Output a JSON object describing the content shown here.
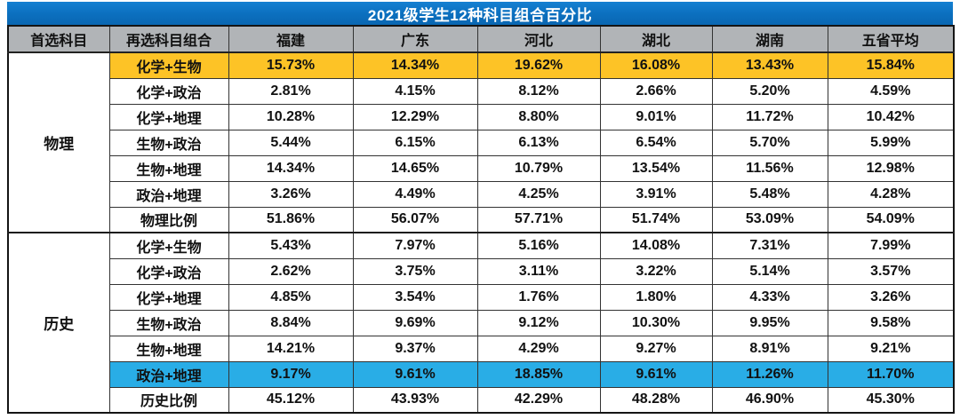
{
  "title": "2021级学生12种科目组合百分比",
  "colors": {
    "title_bar_blue": "#0b6fbe",
    "header_gray": "#b1b4b7",
    "highlight_yellow": "#fdc326",
    "highlight_blue": "#29ade6",
    "row_white": "#ffffff",
    "text_dark": "#111111",
    "title_text": "#ffffff"
  },
  "table": {
    "headers": [
      "首选科目",
      "再选科目组合",
      "福建",
      "广东",
      "河北",
      "湖北",
      "湖南",
      "五省平均"
    ],
    "sections": [
      {
        "group": "物理",
        "rows": [
          {
            "label": "化学+生物",
            "values": [
              "15.73%",
              "14.34%",
              "19.62%",
              "16.08%",
              "13.43%",
              "15.84%"
            ],
            "highlight": "yellow"
          },
          {
            "label": "化学+政治",
            "values": [
              "2.81%",
              "4.15%",
              "8.12%",
              "2.66%",
              "5.20%",
              "4.59%"
            ]
          },
          {
            "label": "化学+地理",
            "values": [
              "10.28%",
              "12.29%",
              "8.80%",
              "9.01%",
              "11.72%",
              "10.42%"
            ]
          },
          {
            "label": "生物+政治",
            "values": [
              "5.44%",
              "6.15%",
              "6.13%",
              "6.54%",
              "5.70%",
              "5.99%"
            ]
          },
          {
            "label": "生物+地理",
            "values": [
              "14.34%",
              "14.65%",
              "10.79%",
              "13.54%",
              "11.56%",
              "12.98%"
            ]
          },
          {
            "label": "政治+地理",
            "values": [
              "3.26%",
              "4.49%",
              "4.25%",
              "3.91%",
              "5.48%",
              "4.28%"
            ]
          },
          {
            "label": "物理比例",
            "values": [
              "51.86%",
              "56.07%",
              "57.71%",
              "51.74%",
              "53.09%",
              "54.09%"
            ],
            "is_total": true
          }
        ]
      },
      {
        "group": "历史",
        "rows": [
          {
            "label": "化学+生物",
            "values": [
              "5.43%",
              "7.97%",
              "5.16%",
              "14.08%",
              "7.31%",
              "7.99%"
            ]
          },
          {
            "label": "化学+政治",
            "values": [
              "2.62%",
              "3.75%",
              "3.11%",
              "3.22%",
              "5.14%",
              "3.57%"
            ]
          },
          {
            "label": "化学+地理",
            "values": [
              "4.85%",
              "3.54%",
              "1.76%",
              "1.80%",
              "4.33%",
              "3.26%"
            ]
          },
          {
            "label": "生物+政治",
            "values": [
              "8.84%",
              "9.69%",
              "9.12%",
              "10.30%",
              "9.95%",
              "9.58%"
            ]
          },
          {
            "label": "生物+地理",
            "values": [
              "14.21%",
              "9.37%",
              "4.29%",
              "9.27%",
              "8.91%",
              "9.21%"
            ]
          },
          {
            "label": "政治+地理",
            "values": [
              "9.17%",
              "9.61%",
              "18.85%",
              "9.61%",
              "11.26%",
              "11.70%"
            ],
            "highlight": "blue"
          },
          {
            "label": "历史比例",
            "values": [
              "45.12%",
              "43.93%",
              "42.29%",
              "48.28%",
              "46.90%",
              "45.30%"
            ],
            "is_total": true
          }
        ]
      }
    ]
  },
  "chart_data": {
    "type": "table",
    "title": "2021级学生12种科目组合百分比",
    "unit": "%",
    "columns": [
      "福建",
      "广东",
      "河北",
      "湖北",
      "湖南",
      "五省平均"
    ],
    "row_groups": [
      {
        "first_choice": "物理",
        "rows": [
          {
            "combination": "化学+生物",
            "values": [
              15.73,
              14.34,
              19.62,
              16.08,
              13.43,
              15.84
            ],
            "highlight": "yellow"
          },
          {
            "combination": "化学+政治",
            "values": [
              2.81,
              4.15,
              8.12,
              2.66,
              5.2,
              4.59
            ]
          },
          {
            "combination": "化学+地理",
            "values": [
              10.28,
              12.29,
              8.8,
              9.01,
              11.72,
              10.42
            ]
          },
          {
            "combination": "生物+政治",
            "values": [
              5.44,
              6.15,
              6.13,
              6.54,
              5.7,
              5.99
            ]
          },
          {
            "combination": "生物+地理",
            "values": [
              14.34,
              14.65,
              10.79,
              13.54,
              11.56,
              12.98
            ]
          },
          {
            "combination": "政治+地理",
            "values": [
              3.26,
              4.49,
              4.25,
              3.91,
              5.48,
              4.28
            ]
          },
          {
            "combination": "物理比例",
            "values": [
              51.86,
              56.07,
              57.71,
              51.74,
              53.09,
              54.09
            ],
            "is_total": true
          }
        ]
      },
      {
        "first_choice": "历史",
        "rows": [
          {
            "combination": "化学+生物",
            "values": [
              5.43,
              7.97,
              5.16,
              14.08,
              7.31,
              7.99
            ]
          },
          {
            "combination": "化学+政治",
            "values": [
              2.62,
              3.75,
              3.11,
              3.22,
              5.14,
              3.57
            ]
          },
          {
            "combination": "化学+地理",
            "values": [
              4.85,
              3.54,
              1.76,
              1.8,
              4.33,
              3.26
            ]
          },
          {
            "combination": "生物+政治",
            "values": [
              8.84,
              9.69,
              9.12,
              10.3,
              9.95,
              9.58
            ]
          },
          {
            "combination": "生物+地理",
            "values": [
              14.21,
              9.37,
              4.29,
              9.27,
              8.91,
              9.21
            ]
          },
          {
            "combination": "政治+地理",
            "values": [
              9.17,
              9.61,
              18.85,
              9.61,
              11.26,
              11.7
            ],
            "highlight": "blue"
          },
          {
            "combination": "历史比例",
            "values": [
              45.12,
              43.93,
              42.29,
              48.28,
              46.9,
              45.3
            ],
            "is_total": true
          }
        ]
      }
    ]
  }
}
